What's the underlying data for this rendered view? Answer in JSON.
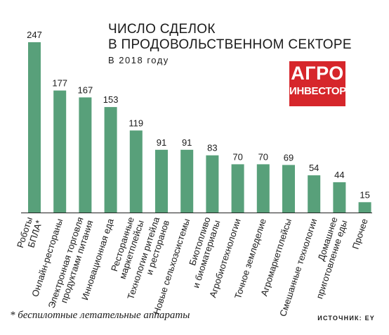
{
  "title_lines": [
    "ЧИСЛО СДЕЛОК",
    "В ПРОДОВОЛЬСТВЕННОМ СЕКТОРЕ"
  ],
  "subtitle": "В 2018 году",
  "logo": {
    "line1": "АГРО",
    "line2": "ИНВЕСТОР",
    "color": "#d6262b"
  },
  "footnote": "* беспилотные летательные аппараты",
  "source": "ИСТОЧНИК: EY",
  "colors": {
    "bar": "#58a07a",
    "baseline": "#222222",
    "text": "#1a1a1a"
  },
  "chart_data": {
    "type": "bar",
    "title": "ЧИСЛО СДЕЛОК В ПРОДОВОЛЬСТВЕННОМ СЕКТОРЕ",
    "subtitle": "В 2018 году",
    "categories": [
      "Роботы БПЛА*",
      "Онлайн-рестораны",
      "Электронная торговля продуктами питания",
      "Инновационная еда",
      "Ресторанные маркетплейсы",
      "Технологии ритейла и ресторанов",
      "Новые сельхозсистемы",
      "Биотопливо и биоматериалы",
      "Агробиотехнологии",
      "Точное земледелие",
      "Агромаркетплейсы",
      "Смешанные технологии",
      "Домашнее приготовление еды",
      "Прочее"
    ],
    "category_lines": [
      [
        "Роботы",
        "БПЛА*"
      ],
      [
        "Онлайн-рестораны"
      ],
      [
        "Электронная торговля",
        "продуктами питания"
      ],
      [
        "Инновационная еда"
      ],
      [
        "Ресторанные",
        "маркетплейсы"
      ],
      [
        "Технологии ритейла",
        "и ресторанов"
      ],
      [
        "Новые сельхозсистемы"
      ],
      [
        "Биотопливо",
        "и биоматериалы"
      ],
      [
        "Агробиотехнологии"
      ],
      [
        "Точное земледелие"
      ],
      [
        "Агромаркетплейсы"
      ],
      [
        "Смешанные технологии"
      ],
      [
        "Домашнее",
        "приготовление еды"
      ],
      [
        "Прочее"
      ]
    ],
    "values": [
      247,
      177,
      167,
      153,
      119,
      91,
      91,
      83,
      70,
      70,
      69,
      54,
      44,
      15
    ],
    "ylim": [
      0,
      247
    ],
    "grid": false,
    "legend": "none"
  }
}
